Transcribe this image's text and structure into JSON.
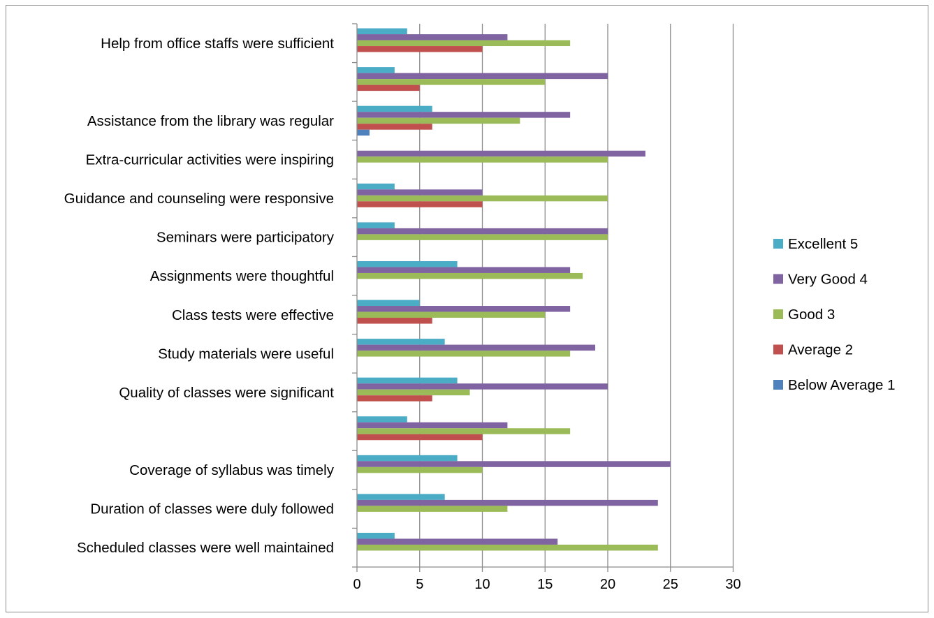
{
  "chart_data": {
    "type": "bar",
    "orientation": "horizontal",
    "title": "",
    "xlabel": "",
    "ylabel": "",
    "xlim": [
      0,
      30
    ],
    "x_ticks": [
      0,
      5,
      10,
      15,
      20,
      25,
      30
    ],
    "grid": "vertical",
    "legend_position": "right",
    "categories": [
      "Scheduled classes were well maintained",
      "Duration of classes were duly followed",
      "Coverage of syllabus was timely",
      "",
      "Quality of classes were significant",
      "Study materials were useful",
      "Class tests were effective",
      "Assignments were thoughtful",
      "Seminars were participatory",
      "Guidance and counseling were responsive",
      "Extra-curricular activities were inspiring",
      "Assistance from the library was regular",
      "",
      "Help from office staffs were sufficient"
    ],
    "series": [
      {
        "name": "Below Average 1",
        "color": "#4F81BD",
        "values": [
          0,
          0,
          0,
          0,
          0,
          0,
          0,
          0,
          0,
          0,
          0,
          1,
          0,
          0
        ]
      },
      {
        "name": "Average 2",
        "color": "#C0504D",
        "values": [
          0,
          0,
          0,
          10,
          6,
          0,
          6,
          0,
          0,
          10,
          0,
          6,
          5,
          10
        ]
      },
      {
        "name": "Good 3",
        "color": "#9BBB59",
        "values": [
          24,
          12,
          10,
          17,
          9,
          17,
          15,
          18,
          20,
          20,
          20,
          13,
          15,
          17
        ]
      },
      {
        "name": "Very Good 4",
        "color": "#8064A2",
        "values": [
          16,
          24,
          25,
          12,
          20,
          19,
          17,
          17,
          20,
          10,
          23,
          17,
          20,
          12
        ]
      },
      {
        "name": "Excellent 5",
        "color": "#4BACC6",
        "values": [
          3,
          7,
          8,
          4,
          8,
          7,
          5,
          8,
          3,
          3,
          0,
          6,
          3,
          4
        ]
      }
    ],
    "legend_order": [
      "Excellent 5",
      "Very Good 4",
      "Good 3",
      "Average 2",
      "Below Average 1"
    ]
  }
}
